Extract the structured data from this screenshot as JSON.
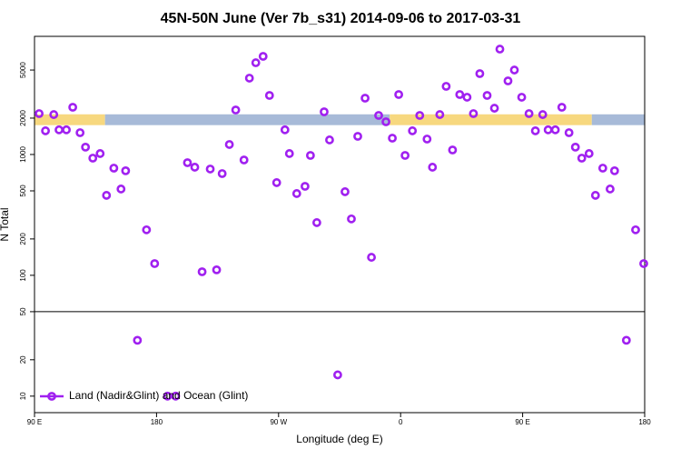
{
  "chart_data": {
    "type": "scatter",
    "title": "45N-50N June (Ver 7b_s31)   2014-09-06 to 2017-03-31",
    "x_label": "Longitude (deg E)",
    "y_label": "N Total",
    "log_y": true,
    "legend": "bottom-left",
    "hline": 50,
    "xlim": [
      90,
      540
    ],
    "xticks": [
      {
        "value": 90,
        "label": "90 E"
      },
      {
        "value": 180,
        "label": "180"
      },
      {
        "value": 270,
        "label": "90 W"
      },
      {
        "value": 360,
        "label": "0"
      },
      {
        "value": 450,
        "label": "90 E"
      },
      {
        "value": 540,
        "label": "180"
      }
    ],
    "ylim": [
      7.3,
      9500
    ],
    "yticks": [
      10,
      20,
      50,
      100,
      200,
      500,
      1000,
      2000,
      5000
    ],
    "strip": {
      "ylim": [
        1750,
        2150
      ],
      "segments": [
        {
          "x": [
            90,
            142
          ],
          "color": "#f7d87f"
        },
        {
          "x": [
            142,
            352
          ],
          "color": "#a7bad8"
        },
        {
          "x": [
            352,
            501
          ],
          "color": "#f7d87f"
        },
        {
          "x": [
            501,
            540
          ],
          "color": "#a7bad8"
        }
      ]
    },
    "series": [
      {
        "name": "Land (Nadir&Glint) and Ocean (Glint)",
        "color": "#a020f0",
        "x": [
          93.4,
          98.1,
          104.2,
          108.1,
          113.5,
          118.2,
          123.6,
          127.6,
          133.0,
          138.4,
          143.1,
          148.5,
          153.8,
          157.2,
          165.9,
          172.6,
          178.6,
          188.1,
          194.1,
          202.8,
          208.2,
          213.6,
          219.6,
          224.3,
          228.4,
          233.7,
          238.4,
          244.5,
          248.5,
          253.2,
          258.6,
          263.3,
          268.6,
          274.7,
          278.0,
          283.4,
          289.5,
          293.5,
          298.2,
          303.6,
          307.6,
          313.6,
          319.0,
          323.7,
          328.4,
          333.8,
          338.5,
          343.8,
          349.2,
          353.9,
          358.6,
          363.3,
          368.7,
          374.1,
          379.5,
          383.5,
          388.9,
          393.6,
          398.3,
          403.6,
          409.0,
          413.7,
          418.4,
          423.8,
          429.2,
          433.2,
          439.2,
          443.9,
          449.3,
          454.7,
          459.4,
          464.8,
          468.8,
          474.1,
          478.9,
          484.2,
          488.9,
          493.6,
          499.0,
          503.7,
          509.1,
          514.5,
          517.8,
          526.5,
          533.3,
          539.3
        ],
        "values": [
          2180,
          1570,
          2140,
          1600,
          1600,
          2460,
          1515,
          1150,
          933,
          1018,
          459,
          771,
          518,
          733,
          29,
          238,
          125,
          10,
          10,
          855,
          785,
          107,
          758,
          111,
          695,
          1210,
          2335,
          901,
          4285,
          5745,
          6490,
          3080,
          585,
          1600,
          1018,
          475,
          545,
          982,
          273,
          2255,
          1320,
          15,
          492,
          293,
          1413,
          2925,
          141,
          2105,
          1865,
          1365,
          3135,
          982,
          1570,
          2105,
          1342,
          785,
          2140,
          3665,
          1090,
          3135,
          2978,
          2180,
          4670,
          3080,
          2416,
          7450,
          4065,
          5000,
          2978,
          2180,
          1570,
          2140,
          1600,
          1600,
          2460,
          1515,
          1150,
          933,
          1018,
          459,
          771,
          518,
          733,
          29,
          238,
          125
        ]
      }
    ]
  }
}
